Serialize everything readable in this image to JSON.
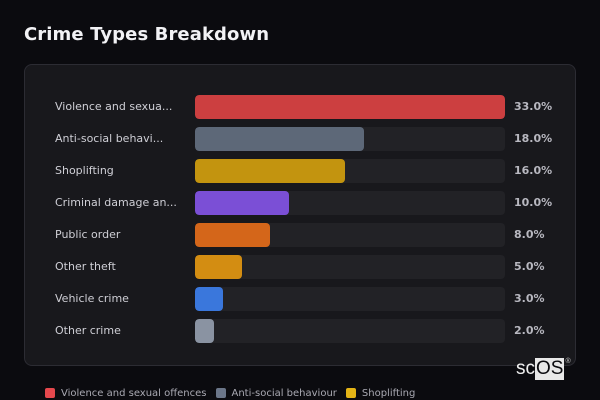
{
  "header": {
    "title": "Crime Types Breakdown"
  },
  "chart_data": {
    "type": "bar",
    "orientation": "horizontal",
    "title": "Crime Types Breakdown",
    "categories": [
      "Violence and sexual offences",
      "Anti-social behaviour",
      "Shoplifting",
      "Criminal damage and arson",
      "Public order",
      "Other theft",
      "Vehicle crime",
      "Other crime"
    ],
    "display_labels": [
      "Violence and sexua...",
      "Anti-social behavi...",
      "Shoplifting",
      "Criminal damage an...",
      "Public order",
      "Other theft",
      "Vehicle crime",
      "Other crime"
    ],
    "values": [
      33.0,
      18.0,
      16.0,
      10.0,
      8.0,
      5.0,
      3.0,
      2.0
    ],
    "value_labels": [
      "33.0%",
      "18.0%",
      "16.0%",
      "10.0%",
      "8.0%",
      "5.0%",
      "3.0%",
      "2.0%"
    ],
    "colors": [
      "#cc3f40",
      "#5d6878",
      "#c3940f",
      "#7b4fd6",
      "#d4661a",
      "#d38d12",
      "#3a77dc",
      "#8a93a2"
    ],
    "unit": "%",
    "xlabel": "",
    "ylabel": "",
    "xlim": [
      0,
      33
    ],
    "grid": false,
    "legend_position": "bottom"
  },
  "rows": [
    {
      "label": "Violence and sexua...",
      "value": "33.0%",
      "pct": 100,
      "color": "#cc3f40"
    },
    {
      "label": "Anti-social behavi...",
      "value": "18.0%",
      "pct": 54.5,
      "color": "#5d6878"
    },
    {
      "label": "Shoplifting",
      "value": "16.0%",
      "pct": 48.5,
      "color": "#c3940f"
    },
    {
      "label": "Criminal damage an...",
      "value": "10.0%",
      "pct": 30.3,
      "color": "#7b4fd6"
    },
    {
      "label": "Public order",
      "value": "8.0%",
      "pct": 24.2,
      "color": "#d4661a"
    },
    {
      "label": "Other theft",
      "value": "5.0%",
      "pct": 15.2,
      "color": "#d38d12"
    },
    {
      "label": "Vehicle crime",
      "value": "3.0%",
      "pct": 9.1,
      "color": "#3a77dc"
    },
    {
      "label": "Other crime",
      "value": "2.0%",
      "pct": 6.1,
      "color": "#8a93a2"
    }
  ],
  "legend": [
    {
      "label": "Violence and sexual offences",
      "color": "#e5484d"
    },
    {
      "label": "Anti-social behaviour",
      "color": "#6b7689"
    },
    {
      "label": "Shoplifting",
      "color": "#e4b416"
    }
  ],
  "branding": {
    "logo_sc": "sc",
    "logo_os": "OS",
    "logo_reg": "®"
  }
}
